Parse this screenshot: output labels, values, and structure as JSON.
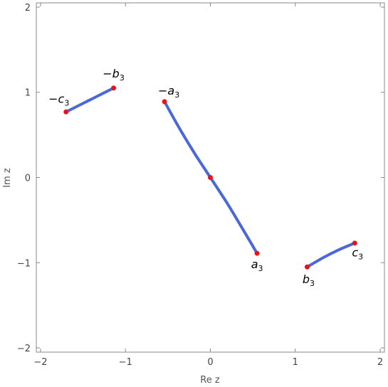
{
  "chart_data": {
    "type": "line",
    "xlabel": "Re z",
    "ylabel": "Im z",
    "xlim": [
      -2.05,
      2.05
    ],
    "ylim": [
      -2.05,
      2.05
    ],
    "xticks": [
      -2,
      -1,
      0,
      1,
      2
    ],
    "yticks": [
      -2,
      -1,
      0,
      1,
      2
    ],
    "grid": false,
    "colors": {
      "curve": "#4a68d8",
      "point": "#e8141b",
      "frame": "#888888"
    },
    "series": [
      {
        "x": [
          -1.7,
          -1.52,
          -1.34,
          -1.14
        ],
        "y": [
          0.77,
          0.86,
          0.95,
          1.05
        ]
      },
      {
        "x": [
          -0.54,
          -0.36,
          -0.19,
          0.0,
          0.19,
          0.36,
          0.55
        ],
        "y": [
          0.89,
          0.57,
          0.29,
          0.0,
          -0.29,
          -0.57,
          -0.89
        ]
      },
      {
        "x": [
          1.14,
          1.33,
          1.51,
          1.7
        ],
        "y": [
          -1.05,
          -0.94,
          -0.85,
          -0.77
        ]
      }
    ],
    "points": [
      {
        "x": -1.7,
        "y": 0.77,
        "label_prefix": "−c",
        "label_sub": "3"
      },
      {
        "x": -1.14,
        "y": 1.05,
        "label_prefix": "−b",
        "label_sub": "3"
      },
      {
        "x": -0.54,
        "y": 0.89,
        "label_prefix": "−a",
        "label_sub": "3"
      },
      {
        "x": 0.0,
        "y": 0.0,
        "label_prefix": "",
        "label_sub": ""
      },
      {
        "x": 0.55,
        "y": -0.89,
        "label_prefix": "a",
        "label_sub": "3"
      },
      {
        "x": 1.14,
        "y": -1.05,
        "label_prefix": "b",
        "label_sub": "3"
      },
      {
        "x": 1.7,
        "y": -0.77,
        "label_prefix": "c",
        "label_sub": "3"
      }
    ]
  }
}
